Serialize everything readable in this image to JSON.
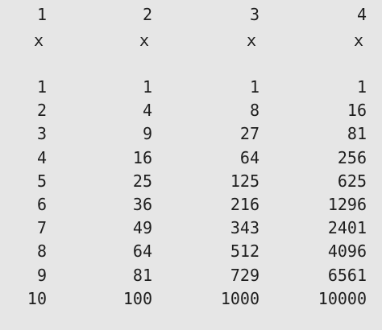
{
  "exponents": [
    "1",
    "2",
    "3",
    "4"
  ],
  "variables": [
    "x",
    "x",
    "x",
    "x"
  ],
  "rows": [
    [
      "1",
      "1",
      "1",
      "1"
    ],
    [
      "2",
      "4",
      "8",
      "16"
    ],
    [
      "3",
      "9",
      "27",
      "81"
    ],
    [
      "4",
      "16",
      "64",
      "256"
    ],
    [
      "5",
      "25",
      "125",
      "625"
    ],
    [
      "6",
      "36",
      "216",
      "1296"
    ],
    [
      "7",
      "49",
      "343",
      "2401"
    ],
    [
      "8",
      "64",
      "512",
      "4096"
    ],
    [
      "9",
      "81",
      "729",
      "6561"
    ],
    [
      "10",
      "100",
      "1000",
      "10000"
    ]
  ]
}
